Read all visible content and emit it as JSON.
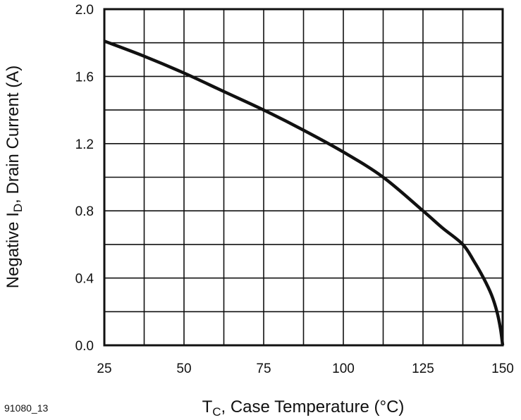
{
  "chart_data": {
    "type": "line",
    "title": "",
    "xlabel": {
      "main": "T",
      "sub": "C",
      "rest": ", Case Temperature (°C)"
    },
    "ylabel": {
      "main": "Negative I",
      "sub": "D",
      "rest": ", Drain Current (A)"
    },
    "xlim": [
      25,
      150
    ],
    "ylim": [
      0,
      2.0
    ],
    "xticks": [
      "25",
      "50",
      "75",
      "100",
      "125",
      "150"
    ],
    "yticks": [
      "0.0",
      "0.4",
      "0.8",
      "1.2",
      "1.6",
      "2.0"
    ],
    "grid": true,
    "x_grid_step": 12.5,
    "y_grid_step": 0.2,
    "series": [
      {
        "x": [
          25,
          37.5,
          50,
          62.5,
          75,
          87.5,
          100,
          112.5,
          125,
          131,
          137.5,
          141,
          144,
          146.5,
          148.2,
          149.3,
          150
        ],
        "y": [
          1.81,
          1.72,
          1.62,
          1.51,
          1.4,
          1.28,
          1.15,
          1.0,
          0.8,
          0.7,
          0.6,
          0.5,
          0.4,
          0.3,
          0.2,
          0.1,
          0.0
        ],
        "color": "#111111"
      }
    ]
  },
  "figure_id": "91080_13"
}
